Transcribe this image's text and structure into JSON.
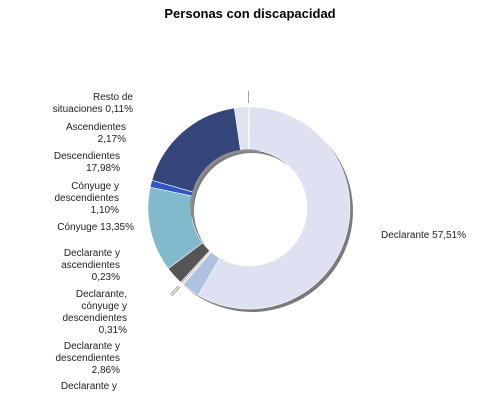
{
  "chart_data": {
    "type": "pie",
    "title": "Personas con discapacidad",
    "slices": [
      {
        "label": "Declarante",
        "value": 57.51,
        "color": "#dde1f1",
        "text": [
          "Declarante 57,51%"
        ]
      },
      {
        "label": "Declarante y descendientes",
        "value": 2.86,
        "color": "#aec3e1",
        "text": [
          "Declarante y",
          "descendientes",
          "2,86%"
        ]
      },
      {
        "label": "Declarante, cónyuge y descendientes",
        "value": 0.31,
        "color": "#d6d6d6",
        "text": [
          "Declarante,",
          "cónyuge y",
          "descendientes",
          "0,31%"
        ]
      },
      {
        "label": "Declarante y ascendientes",
        "value": 0.23,
        "color": "#9a9a9a",
        "text": [
          "Declarante y",
          "ascendientes",
          "0,23%"
        ]
      },
      {
        "label": "Declarante y cónyuge",
        "value": 2.86,
        "color": "#555555",
        "text": [
          "Declarante y"
        ]
      },
      {
        "label": "Cónyuge",
        "value": 13.35,
        "color": "#82b9cc",
        "text": [
          "Cónyuge 13,35%"
        ]
      },
      {
        "label": "Cónyuge y descendientes",
        "value": 1.1,
        "color": "#2e55c4",
        "text": [
          "Cónyuge y",
          "descendientes",
          "1,10%"
        ]
      },
      {
        "label": "Descendientes",
        "value": 17.98,
        "color": "#34457a",
        "text": [
          "Descendientes",
          "17,98%"
        ]
      },
      {
        "label": "Ascendientes",
        "value": 2.17,
        "color": "#dfe2ef",
        "text": [
          "Ascendientes",
          "2,17%"
        ]
      },
      {
        "label": "Resto de situaciones",
        "value": 0.11,
        "color": "#777777",
        "text": [
          "Resto de",
          "situaciones 0,11%"
        ]
      }
    ],
    "legend": "none"
  }
}
